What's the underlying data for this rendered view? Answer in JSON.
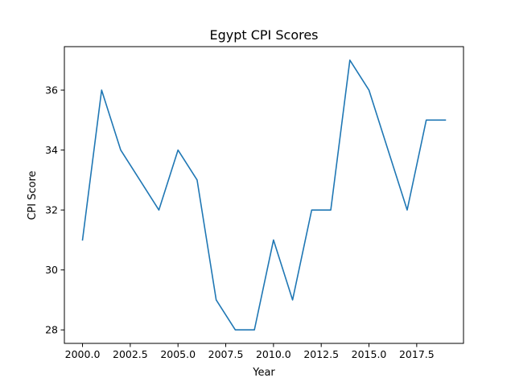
{
  "chart_data": {
    "type": "line",
    "title": "Egypt CPI Scores",
    "xlabel": "Year",
    "ylabel": "CPI Score",
    "xlim": [
      1999.05,
      2019.95
    ],
    "ylim": [
      27.55,
      37.45
    ],
    "xticks": [
      2000.0,
      2002.5,
      2005.0,
      2007.5,
      2010.0,
      2012.5,
      2015.0,
      2017.5
    ],
    "xtick_labels": [
      "2000.0",
      "2002.5",
      "2005.0",
      "2007.5",
      "2010.0",
      "2012.5",
      "2015.0",
      "2017.5"
    ],
    "yticks": [
      28,
      30,
      32,
      34,
      36
    ],
    "ytick_labels": [
      "28",
      "30",
      "32",
      "34",
      "36"
    ],
    "grid": false,
    "legend": "none",
    "line_color": "#1f77b4",
    "series": [
      {
        "x": [
          2000,
          2001,
          2002,
          2003,
          2004,
          2005,
          2006,
          2007,
          2008,
          2009,
          2010,
          2011,
          2012,
          2013,
          2014,
          2015,
          2016,
          2017,
          2018,
          2019
        ],
        "y": [
          31,
          36,
          34,
          33,
          32,
          34,
          33,
          29,
          28,
          28,
          31,
          29,
          32,
          32,
          37,
          36,
          34,
          32,
          35,
          35
        ]
      }
    ]
  }
}
